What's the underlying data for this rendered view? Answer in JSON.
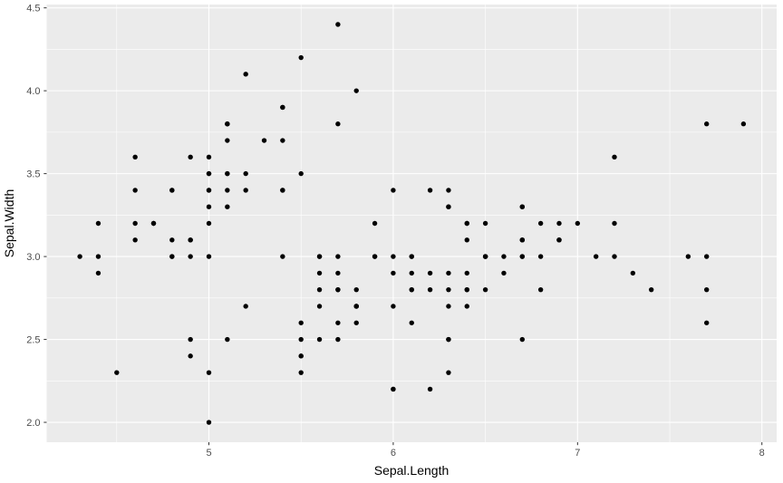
{
  "chart_data": {
    "type": "scatter",
    "title": "",
    "xlabel": "Sepal.Length",
    "ylabel": "Sepal.Width",
    "xlim": [
      4.12,
      8.08
    ],
    "ylim": [
      1.88,
      4.52
    ],
    "x_major_ticks": [
      5,
      6,
      7,
      8
    ],
    "x_tick_labels": [
      "5",
      "6",
      "7",
      "8"
    ],
    "x_minor_ticks": [
      4.5,
      5.5,
      6.5,
      7.5
    ],
    "y_major_ticks": [
      2.0,
      2.5,
      3.0,
      3.5,
      4.0,
      4.5
    ],
    "y_tick_labels": [
      "2.0",
      "2.5",
      "3.0",
      "3.5",
      "4.0",
      "4.5"
    ],
    "y_minor_ticks": [
      2.25,
      2.75,
      3.25,
      3.75,
      4.25
    ],
    "grid": true,
    "legend": "none",
    "theme": {
      "panel_background": "#EBEBEB",
      "grid_major_color": "#FFFFFF",
      "grid_minor_color": "#FFFFFF",
      "point_color": "#000000",
      "tick_mark_color": "#333333",
      "tick_label_color": "#4D4D4D",
      "axis_title_color": "#000000"
    },
    "points": [
      [
        5.1,
        3.5
      ],
      [
        4.9,
        3.0
      ],
      [
        4.7,
        3.2
      ],
      [
        4.6,
        3.1
      ],
      [
        5.0,
        3.6
      ],
      [
        5.4,
        3.9
      ],
      [
        4.6,
        3.4
      ],
      [
        5.0,
        3.4
      ],
      [
        4.4,
        2.9
      ],
      [
        4.9,
        3.1
      ],
      [
        5.4,
        3.7
      ],
      [
        4.8,
        3.4
      ],
      [
        4.8,
        3.0
      ],
      [
        4.3,
        3.0
      ],
      [
        5.8,
        4.0
      ],
      [
        5.7,
        4.4
      ],
      [
        5.4,
        3.9
      ],
      [
        5.1,
        3.5
      ],
      [
        5.7,
        3.8
      ],
      [
        5.1,
        3.8
      ],
      [
        5.4,
        3.4
      ],
      [
        5.1,
        3.7
      ],
      [
        4.6,
        3.6
      ],
      [
        5.1,
        3.3
      ],
      [
        4.8,
        3.4
      ],
      [
        5.0,
        3.0
      ],
      [
        5.0,
        3.4
      ],
      [
        5.2,
        3.5
      ],
      [
        5.2,
        3.4
      ],
      [
        4.7,
        3.2
      ],
      [
        4.8,
        3.1
      ],
      [
        5.4,
        3.4
      ],
      [
        5.2,
        4.1
      ],
      [
        5.5,
        4.2
      ],
      [
        4.9,
        3.1
      ],
      [
        5.0,
        3.2
      ],
      [
        5.5,
        3.5
      ],
      [
        4.9,
        3.6
      ],
      [
        4.4,
        3.0
      ],
      [
        5.1,
        3.4
      ],
      [
        5.0,
        3.5
      ],
      [
        4.5,
        2.3
      ],
      [
        4.4,
        3.2
      ],
      [
        5.0,
        3.5
      ],
      [
        5.1,
        3.8
      ],
      [
        4.8,
        3.0
      ],
      [
        5.1,
        3.8
      ],
      [
        4.6,
        3.2
      ],
      [
        5.3,
        3.7
      ],
      [
        5.0,
        3.3
      ],
      [
        7.0,
        3.2
      ],
      [
        6.4,
        3.2
      ],
      [
        6.9,
        3.1
      ],
      [
        5.5,
        2.3
      ],
      [
        6.5,
        2.8
      ],
      [
        5.7,
        2.8
      ],
      [
        6.3,
        3.3
      ],
      [
        4.9,
        2.4
      ],
      [
        6.6,
        2.9
      ],
      [
        5.2,
        2.7
      ],
      [
        5.0,
        2.0
      ],
      [
        5.9,
        3.0
      ],
      [
        6.0,
        2.2
      ],
      [
        6.1,
        2.9
      ],
      [
        5.6,
        2.9
      ],
      [
        6.7,
        3.1
      ],
      [
        5.6,
        3.0
      ],
      [
        5.8,
        2.7
      ],
      [
        6.2,
        2.2
      ],
      [
        5.6,
        2.5
      ],
      [
        5.9,
        3.2
      ],
      [
        6.1,
        2.8
      ],
      [
        6.3,
        2.5
      ],
      [
        6.1,
        2.8
      ],
      [
        6.4,
        2.9
      ],
      [
        6.6,
        3.0
      ],
      [
        6.8,
        2.8
      ],
      [
        6.7,
        3.0
      ],
      [
        6.0,
        2.9
      ],
      [
        5.7,
        2.6
      ],
      [
        5.5,
        2.4
      ],
      [
        5.5,
        2.4
      ],
      [
        5.8,
        2.7
      ],
      [
        6.0,
        2.7
      ],
      [
        5.4,
        3.0
      ],
      [
        6.0,
        3.4
      ],
      [
        6.7,
        3.1
      ],
      [
        6.3,
        2.3
      ],
      [
        5.6,
        3.0
      ],
      [
        5.5,
        2.5
      ],
      [
        5.5,
        2.6
      ],
      [
        6.1,
        3.0
      ],
      [
        5.8,
        2.6
      ],
      [
        5.0,
        2.3
      ],
      [
        5.6,
        2.7
      ],
      [
        5.7,
        3.0
      ],
      [
        5.7,
        2.9
      ],
      [
        6.2,
        2.9
      ],
      [
        5.1,
        2.5
      ],
      [
        5.7,
        2.8
      ],
      [
        6.3,
        3.3
      ],
      [
        5.8,
        2.7
      ],
      [
        7.1,
        3.0
      ],
      [
        6.3,
        2.9
      ],
      [
        6.5,
        3.0
      ],
      [
        7.6,
        3.0
      ],
      [
        4.9,
        2.5
      ],
      [
        7.3,
        2.9
      ],
      [
        6.7,
        2.5
      ],
      [
        7.2,
        3.6
      ],
      [
        6.5,
        3.2
      ],
      [
        6.4,
        2.7
      ],
      [
        6.8,
        3.0
      ],
      [
        5.7,
        2.5
      ],
      [
        5.8,
        2.8
      ],
      [
        6.4,
        3.2
      ],
      [
        6.5,
        3.0
      ],
      [
        7.7,
        3.8
      ],
      [
        7.7,
        2.6
      ],
      [
        6.0,
        2.2
      ],
      [
        6.9,
        3.2
      ],
      [
        5.6,
        2.8
      ],
      [
        7.7,
        2.8
      ],
      [
        6.3,
        2.7
      ],
      [
        6.7,
        3.3
      ],
      [
        7.2,
        3.2
      ],
      [
        6.2,
        2.8
      ],
      [
        6.1,
        3.0
      ],
      [
        6.4,
        2.8
      ],
      [
        7.2,
        3.0
      ],
      [
        7.4,
        2.8
      ],
      [
        7.9,
        3.8
      ],
      [
        6.4,
        2.8
      ],
      [
        6.3,
        2.8
      ],
      [
        6.1,
        2.6
      ],
      [
        7.7,
        3.0
      ],
      [
        6.3,
        3.4
      ],
      [
        6.4,
        3.1
      ],
      [
        6.0,
        3.0
      ],
      [
        6.9,
        3.1
      ],
      [
        6.7,
        3.1
      ],
      [
        6.9,
        3.1
      ],
      [
        5.8,
        2.7
      ],
      [
        6.8,
        3.2
      ],
      [
        6.7,
        3.3
      ],
      [
        6.7,
        3.0
      ],
      [
        6.3,
        2.5
      ],
      [
        6.5,
        3.0
      ],
      [
        6.2,
        3.4
      ],
      [
        5.9,
        3.0
      ]
    ]
  }
}
